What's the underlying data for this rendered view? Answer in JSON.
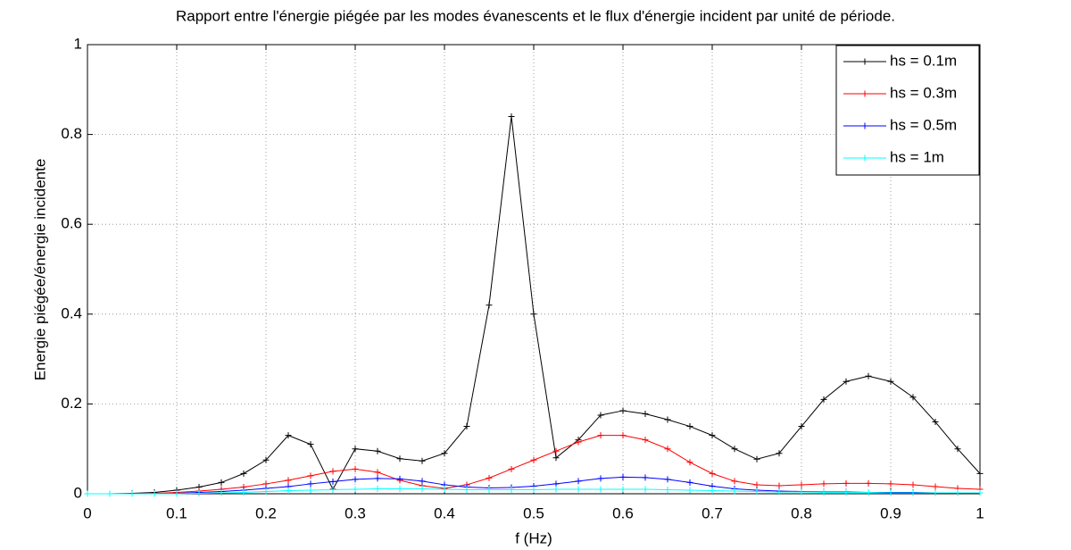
{
  "chart_data": {
    "type": "line",
    "title": "Rapport entre l'énergie piégée par les modes évanescents et le flux d'énergie incident par unité de période.",
    "x_label": "f (Hz)",
    "y_label": "Energie piégée/énergie incidente",
    "x": [
      0,
      0.025,
      0.05,
      0.075,
      0.1,
      0.125,
      0.15,
      0.175,
      0.2,
      0.225,
      0.25,
      0.275,
      0.3,
      0.325,
      0.35,
      0.375,
      0.4,
      0.425,
      0.45,
      0.475,
      0.5,
      0.525,
      0.55,
      0.575,
      0.6,
      0.625,
      0.65,
      0.675,
      0.7,
      0.725,
      0.75,
      0.775,
      0.8,
      0.825,
      0.85,
      0.875,
      0.9,
      0.925,
      0.95,
      0.975,
      1
    ],
    "series": [
      {
        "name": "hs = 0.1m",
        "color": "#000000",
        "values": [
          0,
          0,
          0.001,
          0.003,
          0.008,
          0.015,
          0.025,
          0.045,
          0.075,
          0.13,
          0.11,
          0.01,
          0.1,
          0.095,
          0.078,
          0.073,
          0.09,
          0.15,
          0.42,
          0.84,
          0.4,
          0.08,
          0.12,
          0.175,
          0.185,
          0.178,
          0.165,
          0.15,
          0.13,
          0.1,
          0.077,
          0.09,
          0.15,
          0.21,
          0.25,
          0.262,
          0.25,
          0.215,
          0.16,
          0.1,
          0.045
        ]
      },
      {
        "name": "hs = 0.3m",
        "color": "#ff0000",
        "values": [
          0,
          0,
          0,
          0.001,
          0.003,
          0.006,
          0.01,
          0.015,
          0.022,
          0.03,
          0.04,
          0.05,
          0.055,
          0.048,
          0.03,
          0.018,
          0.012,
          0.02,
          0.035,
          0.055,
          0.075,
          0.095,
          0.115,
          0.13,
          0.13,
          0.12,
          0.1,
          0.07,
          0.045,
          0.028,
          0.02,
          0.018,
          0.02,
          0.022,
          0.023,
          0.023,
          0.022,
          0.02,
          0.016,
          0.012,
          0.01
        ]
      },
      {
        "name": "hs = 0.5m",
        "color": "#0000ff",
        "values": [
          0,
          0,
          0,
          0,
          0.001,
          0.003,
          0.005,
          0.008,
          0.012,
          0.016,
          0.022,
          0.027,
          0.032,
          0.034,
          0.033,
          0.028,
          0.02,
          0.015,
          0.013,
          0.014,
          0.017,
          0.022,
          0.028,
          0.034,
          0.037,
          0.036,
          0.032,
          0.025,
          0.017,
          0.011,
          0.008,
          0.006,
          0.005,
          0.004,
          0.004,
          0.003,
          0.003,
          0.003,
          0.002,
          0.002,
          0.002
        ]
      },
      {
        "name": "hs = 1m",
        "color": "#00ffff",
        "values": [
          0,
          0,
          0,
          0,
          0,
          0.001,
          0.002,
          0.003,
          0.005,
          0.007,
          0.008,
          0.009,
          0.01,
          0.011,
          0.011,
          0.011,
          0.01,
          0.009,
          0.009,
          0.009,
          0.009,
          0.01,
          0.01,
          0.01,
          0.01,
          0.01,
          0.009,
          0.008,
          0.007,
          0.006,
          0.005,
          0.004,
          0.004,
          0.003,
          0.003,
          0.003,
          0.002,
          0.002,
          0.002,
          0.002,
          0.002
        ]
      }
    ],
    "xlim": [
      0,
      1
    ],
    "ylim": [
      0,
      1
    ],
    "xticks": [
      0,
      0.1,
      0.2,
      0.3,
      0.4,
      0.5,
      0.6,
      0.7,
      0.8,
      0.9,
      1
    ],
    "yticks": [
      0,
      0.2,
      0.4,
      0.6,
      0.8,
      1
    ],
    "grid": true,
    "legend": "upper right"
  }
}
